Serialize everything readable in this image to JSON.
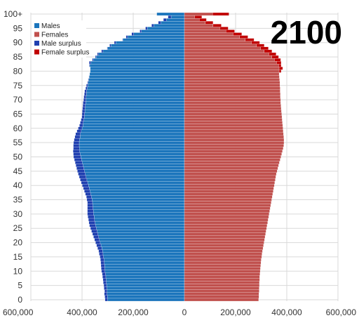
{
  "colors": {
    "males": "#1b75bc",
    "females": "#c0504d",
    "male_surplus": "#1f3fb0",
    "female_surplus": "#c00000",
    "grid": "#d9d9d9",
    "bar_edge": "#ffffff"
  },
  "chart_data": {
    "type": "bar",
    "orientation": "horizontal",
    "year_label": "2100",
    "xlim": [
      -600000,
      600000
    ],
    "x_ticks": [
      {
        "value": -600000,
        "label": "600,000"
      },
      {
        "value": -400000,
        "label": "400,000"
      },
      {
        "value": -200000,
        "label": "200,000"
      },
      {
        "value": 0,
        "label": "0"
      },
      {
        "value": 200000,
        "label": "200,000"
      },
      {
        "value": 400000,
        "label": "400,000"
      },
      {
        "value": 600000,
        "label": "600,000"
      }
    ],
    "y_ticks": [
      {
        "age": 0,
        "label": "0"
      },
      {
        "age": 5,
        "label": "5"
      },
      {
        "age": 10,
        "label": "10"
      },
      {
        "age": 15,
        "label": "15"
      },
      {
        "age": 20,
        "label": "20"
      },
      {
        "age": 25,
        "label": "25"
      },
      {
        "age": 30,
        "label": "30"
      },
      {
        "age": 35,
        "label": "35"
      },
      {
        "age": 40,
        "label": "40"
      },
      {
        "age": 45,
        "label": "45"
      },
      {
        "age": 50,
        "label": "50"
      },
      {
        "age": 55,
        "label": "55"
      },
      {
        "age": 60,
        "label": "60"
      },
      {
        "age": 65,
        "label": "65"
      },
      {
        "age": 70,
        "label": "70"
      },
      {
        "age": 75,
        "label": "75"
      },
      {
        "age": 80,
        "label": "80"
      },
      {
        "age": 85,
        "label": "85"
      },
      {
        "age": 90,
        "label": "90"
      },
      {
        "age": 95,
        "label": "95"
      },
      {
        "age": 100,
        "label": "100+"
      }
    ],
    "grid": true,
    "legend_position": "top-left",
    "legend": [
      {
        "key": "males",
        "label": "Males"
      },
      {
        "key": "females",
        "label": "Females"
      },
      {
        "key": "male_surplus",
        "label": "Male surplus"
      },
      {
        "key": "female_surplus",
        "label": "Female surplus"
      }
    ],
    "series": [
      {
        "key": "males",
        "values": [
          300000,
          301000,
          302000,
          302000,
          303000,
          304000,
          305000,
          306000,
          307000,
          308000,
          310000,
          311000,
          312000,
          313000,
          314000,
          316000,
          318000,
          320000,
          323000,
          326000,
          329000,
          332000,
          335000,
          338000,
          341000,
          344000,
          347000,
          349000,
          351000,
          353000,
          355000,
          356000,
          357000,
          358000,
          359000,
          361000,
          363000,
          366000,
          369000,
          372000,
          375000,
          378000,
          381000,
          384000,
          387000,
          390000,
          393000,
          396000,
          399000,
          402000,
          405000,
          407000,
          409000,
          410000,
          411000,
          411000,
          410000,
          408000,
          406000,
          403000,
          400000,
          397000,
          395000,
          393000,
          391000,
          390000,
          389000,
          388000,
          387000,
          386000,
          385000,
          384000,
          383000,
          382000,
          380000,
          378000,
          376000,
          374000,
          372000,
          370000,
          368000,
          368000,
          370000,
          366000,
          356000,
          345000,
          335000,
          318000,
          300000,
          287000,
          268000,
          240000,
          222000,
          198000,
          168000,
          145000,
          120000,
          92000,
          70000,
          52000,
          108000
        ]
      },
      {
        "key": "females",
        "values": [
          290000,
          291000,
          291000,
          292000,
          292000,
          293000,
          293000,
          294000,
          294000,
          295000,
          296000,
          297000,
          298000,
          299000,
          300000,
          302000,
          303000,
          305000,
          307000,
          309000,
          311000,
          313000,
          315000,
          317000,
          319000,
          321000,
          323000,
          325000,
          327000,
          329000,
          331000,
          333000,
          335000,
          337000,
          339000,
          341000,
          343000,
          345000,
          347000,
          349000,
          351000,
          353000,
          355000,
          357000,
          359000,
          362000,
          365000,
          368000,
          371000,
          374000,
          377000,
          380000,
          383000,
          386000,
          388000,
          389000,
          389000,
          388000,
          387000,
          386000,
          385000,
          384000,
          383000,
          382000,
          381000,
          380000,
          379000,
          378000,
          377000,
          376000,
          376000,
          375000,
          375000,
          374000,
          374000,
          373000,
          373000,
          372000,
          371000,
          370000,
          370000,
          370000,
          368000,
          360000,
          352000,
          342000,
          330000,
          312000,
          298000,
          282000,
          262000,
          238000,
          216000,
          190000,
          162000,
          138000,
          112000,
          82000,
          58000,
          40000,
          110000
        ]
      },
      {
        "key": "male_surplus",
        "values": [
          10000,
          10000,
          11000,
          10000,
          11000,
          11000,
          12000,
          12000,
          13000,
          13000,
          14000,
          14000,
          14000,
          14000,
          14000,
          14000,
          15000,
          15000,
          16000,
          17000,
          18000,
          19000,
          20000,
          21000,
          22000,
          23000,
          24000,
          24000,
          24000,
          24000,
          24000,
          23000,
          22000,
          21000,
          20000,
          20000,
          20000,
          21000,
          22000,
          23000,
          24000,
          25000,
          26000,
          27000,
          28000,
          28000,
          28000,
          28000,
          28000,
          28000,
          28000,
          27000,
          26000,
          24000,
          23000,
          22000,
          21000,
          20000,
          19000,
          17000,
          15000,
          13000,
          12000,
          11000,
          10000,
          10000,
          10000,
          10000,
          10000,
          10000,
          9000,
          9000,
          8000,
          8000,
          6000,
          5000,
          3000,
          2000,
          1000,
          0,
          0,
          0,
          2000,
          6000,
          4000,
          3000,
          5000,
          6000,
          2000,
          5000,
          6000,
          2000,
          6000,
          8000,
          6000,
          7000,
          8000,
          10000,
          12000,
          12000,
          0
        ]
      },
      {
        "key": "female_surplus",
        "values": [
          0,
          0,
          0,
          0,
          0,
          0,
          0,
          0,
          0,
          0,
          0,
          0,
          0,
          0,
          0,
          0,
          0,
          0,
          0,
          0,
          0,
          0,
          0,
          0,
          0,
          0,
          0,
          0,
          0,
          0,
          0,
          0,
          0,
          0,
          0,
          0,
          0,
          0,
          0,
          0,
          0,
          0,
          0,
          0,
          0,
          0,
          0,
          0,
          0,
          0,
          0,
          0,
          0,
          0,
          0,
          0,
          0,
          0,
          0,
          0,
          0,
          0,
          0,
          0,
          0,
          0,
          0,
          0,
          0,
          0,
          0,
          0,
          0,
          0,
          0,
          0,
          0,
          0,
          0,
          0,
          8000,
          14000,
          10000,
          18000,
          24000,
          26000,
          28000,
          30000,
          30000,
          30000,
          32000,
          34000,
          32000,
          34000,
          34000,
          33000,
          32000,
          30000,
          28000,
          28000,
          64000
        ]
      }
    ]
  }
}
